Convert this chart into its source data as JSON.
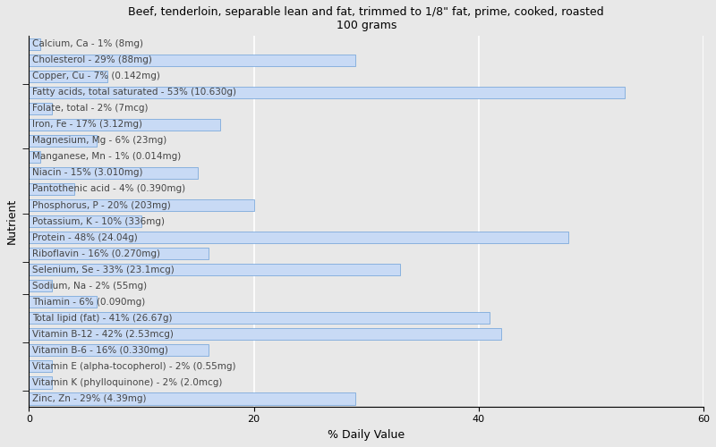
{
  "title": "Beef, tenderloin, separable lean and fat, trimmed to 1/8\" fat, prime, cooked, roasted\n100 grams",
  "xlabel": "% Daily Value",
  "ylabel": "Nutrient",
  "xlim": [
    0,
    60
  ],
  "xticks": [
    0,
    20,
    40,
    60
  ],
  "bar_color": "#c8daf5",
  "bar_edgecolor": "#6a9fd8",
  "background_color": "#e8e8e8",
  "axes_facecolor": "#e8e8e8",
  "label_color": "#444444",
  "nutrients": [
    "Calcium, Ca - 1% (8mg)",
    "Cholesterol - 29% (88mg)",
    "Copper, Cu - 7% (0.142mg)",
    "Fatty acids, total saturated - 53% (10.630g)",
    "Folate, total - 2% (7mcg)",
    "Iron, Fe - 17% (3.12mg)",
    "Magnesium, Mg - 6% (23mg)",
    "Manganese, Mn - 1% (0.014mg)",
    "Niacin - 15% (3.010mg)",
    "Pantothenic acid - 4% (0.390mg)",
    "Phosphorus, P - 20% (203mg)",
    "Potassium, K - 10% (336mg)",
    "Protein - 48% (24.04g)",
    "Riboflavin - 16% (0.270mg)",
    "Selenium, Se - 33% (23.1mcg)",
    "Sodium, Na - 2% (55mg)",
    "Thiamin - 6% (0.090mg)",
    "Total lipid (fat) - 41% (26.67g)",
    "Vitamin B-12 - 42% (2.53mcg)",
    "Vitamin B-6 - 16% (0.330mg)",
    "Vitamin E (alpha-tocopherol) - 2% (0.55mg)",
    "Vitamin K (phylloquinone) - 2% (2.0mcg)",
    "Zinc, Zn - 29% (4.39mg)"
  ],
  "values": [
    1,
    29,
    7,
    53,
    2,
    17,
    6,
    1,
    15,
    4,
    20,
    10,
    48,
    16,
    33,
    2,
    6,
    41,
    42,
    16,
    2,
    2,
    29
  ],
  "tick_groups": [
    0,
    3,
    7,
    11,
    14,
    16,
    19,
    22
  ],
  "label_fontsize": 7.5
}
